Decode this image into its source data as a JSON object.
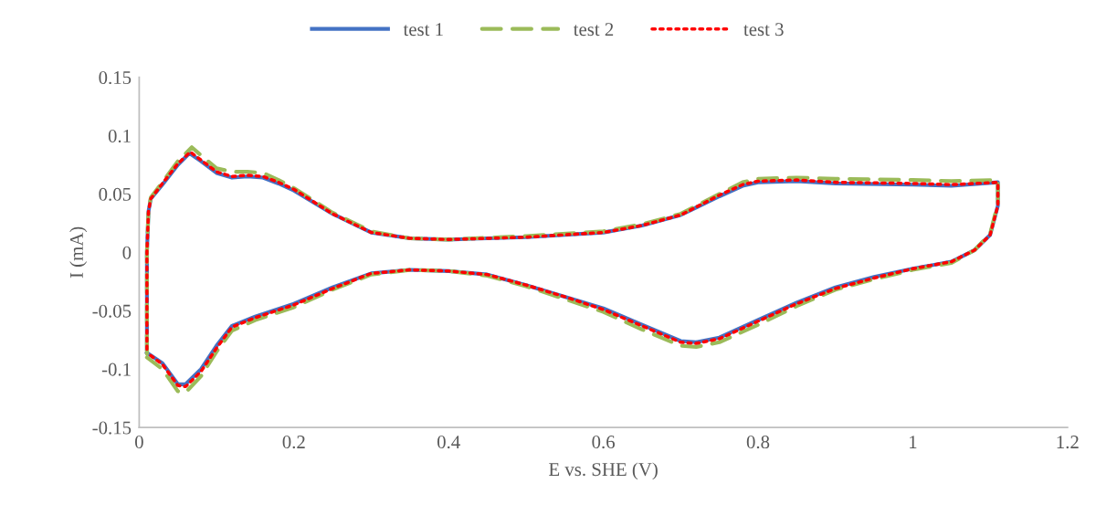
{
  "chart_data": {
    "type": "line",
    "xlabel": "E vs. SHE (V)",
    "ylabel": "I (mA)",
    "xlim": [
      0,
      1.2
    ],
    "xticks": [
      0,
      0.2,
      0.4,
      0.6,
      0.8,
      1,
      1.2
    ],
    "ylim": [
      -0.15,
      0.15
    ],
    "yticks": [
      -0.15,
      -0.1,
      -0.05,
      0,
      0.05,
      0.1,
      0.15
    ],
    "grid": false,
    "legend": "top",
    "marker": "none",
    "series": [
      {
        "name": "test 1",
        "color": "#4472c4",
        "line_style": "solid",
        "x": [
          0.01,
          0.01,
          0.012,
          0.015,
          0.03,
          0.05,
          0.065,
          0.08,
          0.1,
          0.12,
          0.14,
          0.16,
          0.18,
          0.2,
          0.25,
          0.3,
          0.35,
          0.4,
          0.5,
          0.6,
          0.65,
          0.7,
          0.75,
          0.78,
          0.8,
          0.85,
          0.9,
          1.0,
          1.05,
          1.11,
          1.11,
          1.1,
          1.08,
          1.05,
          1.0,
          0.95,
          0.9,
          0.85,
          0.8,
          0.75,
          0.72,
          0.7,
          0.65,
          0.6,
          0.55,
          0.5,
          0.45,
          0.4,
          0.35,
          0.3,
          0.25,
          0.2,
          0.15,
          0.12,
          0.1,
          0.08,
          0.06,
          0.05,
          0.03,
          0.01
        ],
        "values": [
          -0.083,
          0.0,
          0.035,
          0.046,
          0.058,
          0.075,
          0.085,
          0.078,
          0.068,
          0.064,
          0.065,
          0.064,
          0.059,
          0.053,
          0.033,
          0.017,
          0.012,
          0.011,
          0.013,
          0.017,
          0.023,
          0.032,
          0.048,
          0.057,
          0.06,
          0.061,
          0.059,
          0.058,
          0.057,
          0.06,
          0.04,
          0.015,
          0.002,
          -0.008,
          -0.014,
          -0.021,
          -0.03,
          -0.043,
          -0.058,
          -0.073,
          -0.077,
          -0.076,
          -0.062,
          -0.048,
          -0.038,
          -0.028,
          -0.019,
          -0.016,
          -0.015,
          -0.018,
          -0.03,
          -0.044,
          -0.055,
          -0.063,
          -0.08,
          -0.1,
          -0.113,
          -0.113,
          -0.095,
          -0.086
        ]
      },
      {
        "name": "test 2",
        "color": "#9bbb59",
        "line_style": "dashed",
        "x": [
          0.01,
          0.01,
          0.012,
          0.015,
          0.03,
          0.05,
          0.068,
          0.08,
          0.1,
          0.12,
          0.14,
          0.16,
          0.18,
          0.2,
          0.25,
          0.3,
          0.35,
          0.4,
          0.5,
          0.6,
          0.65,
          0.7,
          0.75,
          0.78,
          0.8,
          0.85,
          0.9,
          1.0,
          1.05,
          1.11,
          1.11,
          1.1,
          1.08,
          1.05,
          1.0,
          0.95,
          0.9,
          0.85,
          0.8,
          0.75,
          0.72,
          0.7,
          0.65,
          0.6,
          0.55,
          0.5,
          0.45,
          0.4,
          0.35,
          0.3,
          0.25,
          0.2,
          0.15,
          0.12,
          0.1,
          0.08,
          0.06,
          0.05,
          0.03,
          0.01
        ],
        "values": [
          -0.087,
          0.0,
          0.036,
          0.047,
          0.06,
          0.078,
          0.09,
          0.083,
          0.072,
          0.069,
          0.069,
          0.068,
          0.062,
          0.055,
          0.034,
          0.018,
          0.012,
          0.011,
          0.014,
          0.018,
          0.024,
          0.033,
          0.05,
          0.06,
          0.063,
          0.064,
          0.063,
          0.062,
          0.061,
          0.062,
          0.042,
          0.016,
          0.002,
          -0.009,
          -0.015,
          -0.023,
          -0.032,
          -0.046,
          -0.062,
          -0.077,
          -0.081,
          -0.08,
          -0.066,
          -0.051,
          -0.04,
          -0.029,
          -0.02,
          -0.016,
          -0.015,
          -0.019,
          -0.032,
          -0.047,
          -0.058,
          -0.067,
          -0.085,
          -0.106,
          -0.12,
          -0.119,
          -0.1,
          -0.09
        ]
      },
      {
        "name": "test 3",
        "color": "#ff0000",
        "line_style": "dotted",
        "x": [
          0.01,
          0.01,
          0.012,
          0.015,
          0.03,
          0.05,
          0.066,
          0.08,
          0.1,
          0.12,
          0.14,
          0.16,
          0.18,
          0.2,
          0.25,
          0.3,
          0.35,
          0.4,
          0.5,
          0.6,
          0.65,
          0.7,
          0.75,
          0.78,
          0.8,
          0.85,
          0.9,
          1.0,
          1.05,
          1.11,
          1.11,
          1.1,
          1.08,
          1.05,
          1.0,
          0.95,
          0.9,
          0.85,
          0.8,
          0.75,
          0.72,
          0.7,
          0.65,
          0.6,
          0.55,
          0.5,
          0.45,
          0.4,
          0.35,
          0.3,
          0.25,
          0.2,
          0.15,
          0.12,
          0.1,
          0.08,
          0.06,
          0.05,
          0.03,
          0.01
        ],
        "values": [
          -0.083,
          0.0,
          0.035,
          0.046,
          0.059,
          0.076,
          0.086,
          0.079,
          0.069,
          0.065,
          0.066,
          0.065,
          0.06,
          0.054,
          0.033,
          0.017,
          0.012,
          0.011,
          0.013,
          0.017,
          0.023,
          0.032,
          0.049,
          0.058,
          0.061,
          0.062,
          0.06,
          0.059,
          0.058,
          0.06,
          0.04,
          0.015,
          0.002,
          -0.008,
          -0.014,
          -0.022,
          -0.031,
          -0.044,
          -0.059,
          -0.074,
          -0.078,
          -0.077,
          -0.063,
          -0.049,
          -0.038,
          -0.028,
          -0.019,
          -0.016,
          -0.015,
          -0.018,
          -0.031,
          -0.045,
          -0.056,
          -0.064,
          -0.082,
          -0.102,
          -0.115,
          -0.114,
          -0.096,
          -0.086
        ]
      }
    ]
  }
}
